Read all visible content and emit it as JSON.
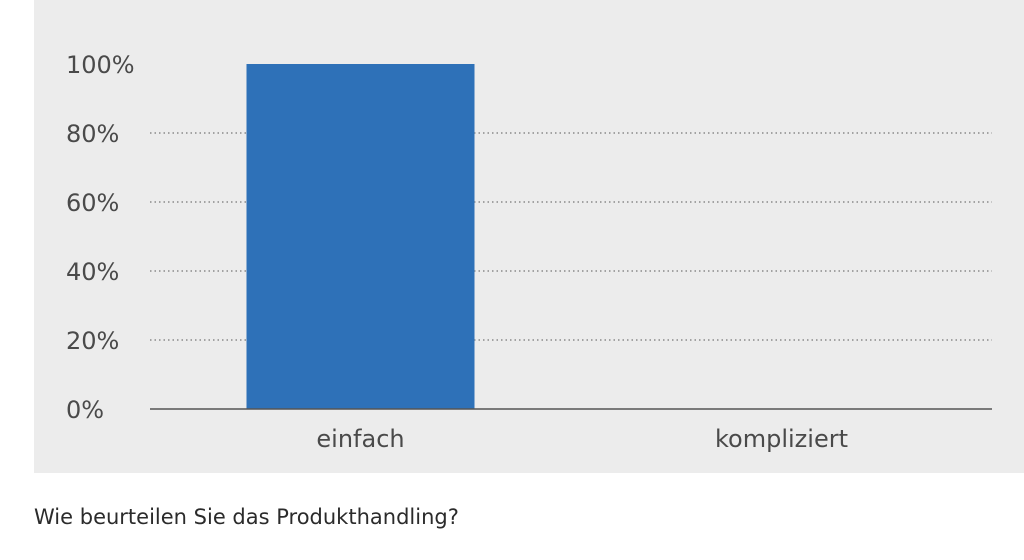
{
  "caption": "Wie beurteilen Sie das Produkthandling?",
  "chart_data": {
    "type": "bar",
    "categories": [
      "einfach",
      "kompliziert"
    ],
    "values": [
      100,
      0
    ],
    "ylim": [
      0,
      100
    ],
    "yticks": [
      "0%",
      "20%",
      "40%",
      "60%",
      "80%",
      "100%"
    ],
    "ytick_values": [
      0,
      20,
      40,
      60,
      80,
      100
    ],
    "grid": "horizontal dotted",
    "bar_color": "#2e71b8",
    "panel_color": "#ececec",
    "axis_color": "#555555"
  }
}
